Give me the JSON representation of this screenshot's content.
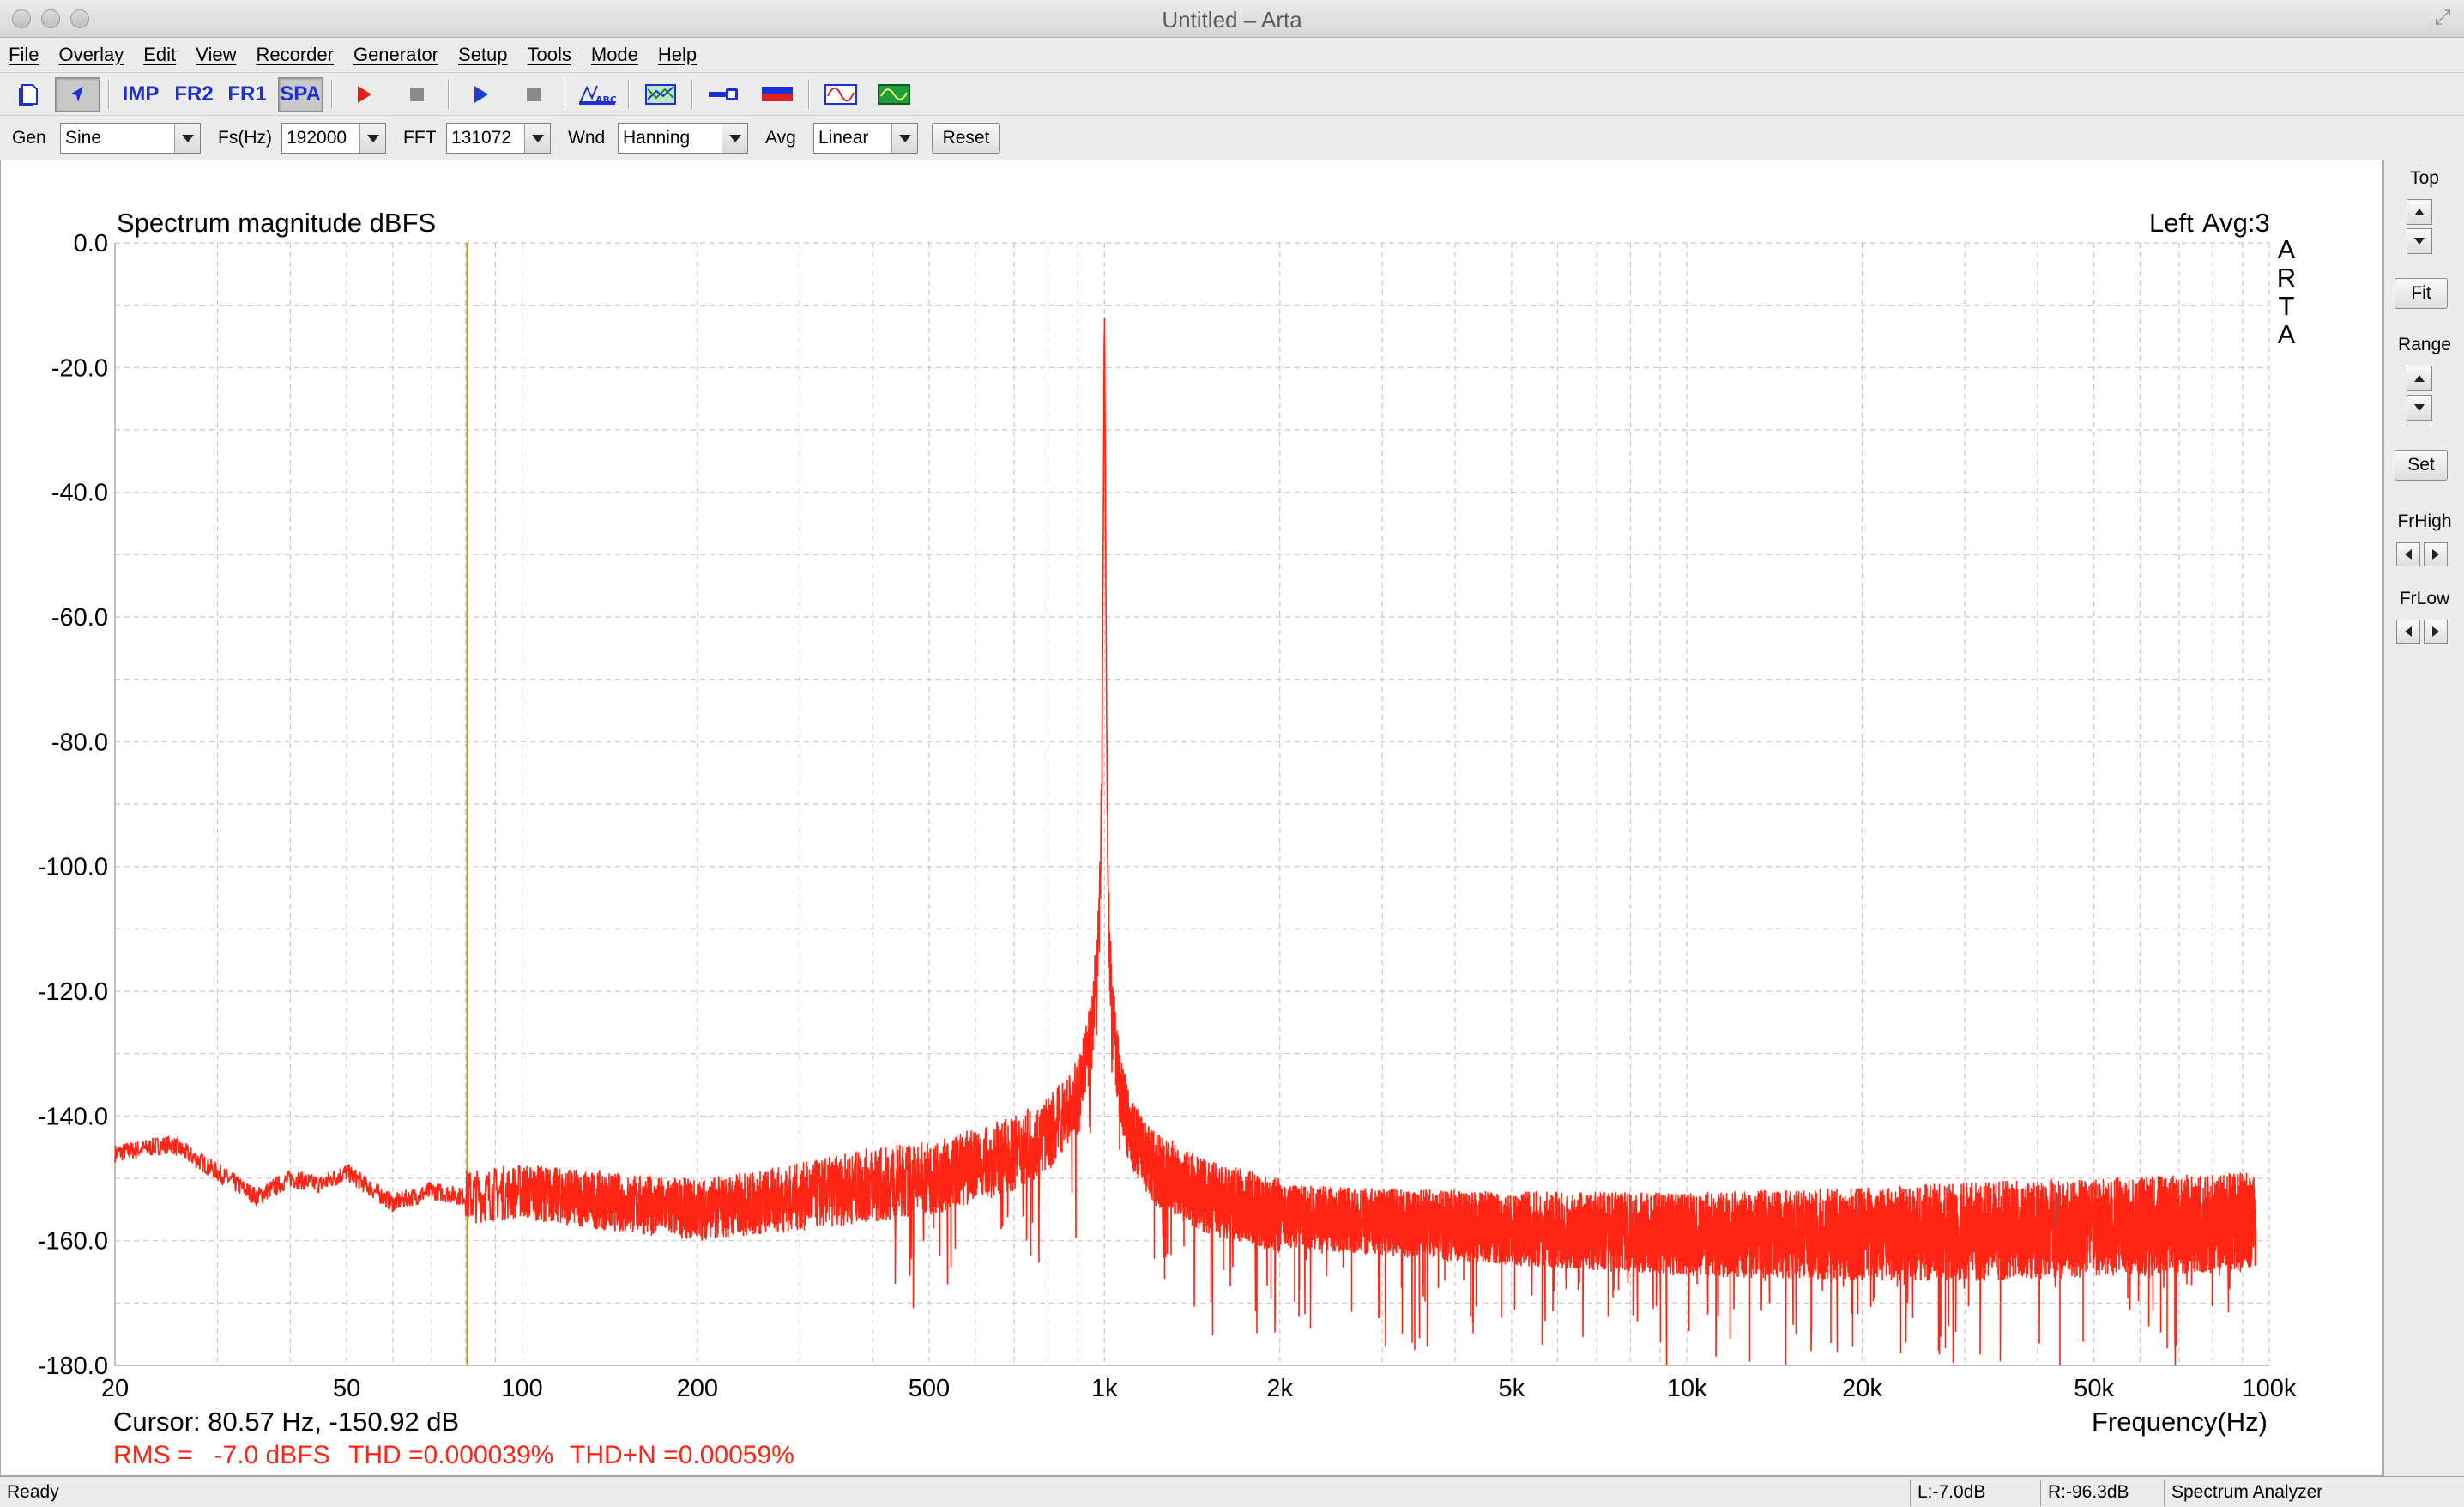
{
  "window": {
    "title": "Untitled – Arta"
  },
  "menu": [
    "File",
    "Overlay",
    "Edit",
    "View",
    "Recorder",
    "Generator",
    "Setup",
    "Tools",
    "Mode",
    "Help"
  ],
  "toolbar": {
    "imp_label": "IMP",
    "fr2_label": "FR2",
    "fr1_label": "FR1",
    "spa_label": "SPA",
    "active_mode": "SPA",
    "record_color": "#e02020",
    "play_color": "#1e3fd6"
  },
  "params": {
    "gen_label": "Gen",
    "gen_value": "Sine",
    "fs_label": "Fs(Hz)",
    "fs_value": "192000",
    "fft_label": "FFT",
    "fft_value": "131072",
    "wnd_label": "Wnd",
    "wnd_value": "Hanning",
    "avg_label": "Avg",
    "avg_value": "Linear",
    "reset_label": "Reset"
  },
  "plot": {
    "title": "Spectrum magnitude dBFS",
    "channel": "Left",
    "avg": "Avg:3",
    "watermark": "ARTA",
    "xlabel": "Frequency(Hz)",
    "cursor_text": "Cursor: 80.57 Hz, -150.92 dB",
    "rms_text": "RMS =   -7.0 dBFS",
    "thd_text": "THD =0.000039%",
    "thdn_text": "THD+N =0.00059%",
    "trace_color": "#ff2414",
    "cursor_color": "#b8a000",
    "measure_color": "#ff2414"
  },
  "chart_data": {
    "type": "line",
    "title": "Spectrum magnitude dBFS",
    "xlabel": "Frequency(Hz)",
    "ylabel": "",
    "xscale": "log",
    "xlim": [
      20,
      100000
    ],
    "ylim": [
      -180,
      0
    ],
    "grid": true,
    "x_ticks": [
      {
        "v": 20,
        "label": "20"
      },
      {
        "v": 50,
        "label": "50"
      },
      {
        "v": 100,
        "label": "100"
      },
      {
        "v": 200,
        "label": "200"
      },
      {
        "v": 500,
        "label": "500"
      },
      {
        "v": 1000,
        "label": "1k"
      },
      {
        "v": 2000,
        "label": "2k"
      },
      {
        "v": 5000,
        "label": "5k"
      },
      {
        "v": 10000,
        "label": "10k"
      },
      {
        "v": 20000,
        "label": "20k"
      },
      {
        "v": 50000,
        "label": "50k"
      },
      {
        "v": 100000,
        "label": "100k"
      }
    ],
    "y_ticks": [
      {
        "v": 0,
        "label": "0.0"
      },
      {
        "v": -20,
        "label": "-20.0"
      },
      {
        "v": -40,
        "label": "-40.0"
      },
      {
        "v": -60,
        "label": "-60.0"
      },
      {
        "v": -80,
        "label": "-80.0"
      },
      {
        "v": -100,
        "label": "-100.0"
      },
      {
        "v": -120,
        "label": "-120.0"
      },
      {
        "v": -140,
        "label": "-140.0"
      },
      {
        "v": -160,
        "label": "-160.0"
      },
      {
        "v": -180,
        "label": "-180.0"
      }
    ],
    "cursor_hz": 80.57,
    "series": [
      {
        "x": [
          20,
          25,
          30,
          35,
          40,
          45,
          50,
          60,
          70,
          80,
          100,
          120,
          150,
          200,
          250,
          300,
          400,
          500,
          600,
          700,
          800,
          900,
          950,
          980,
          990,
          995,
          1000,
          1005,
          1010,
          1020,
          1050,
          1100,
          1200,
          1500,
          2000,
          3000,
          5000,
          10000,
          20000,
          50000,
          95000
        ],
        "y": [
          -146,
          -144.5,
          -149,
          -153,
          -150,
          -151,
          -149,
          -154,
          -152,
          -153,
          -152,
          -153,
          -154,
          -155,
          -154,
          -153,
          -151,
          -150,
          -148,
          -146,
          -143,
          -137,
          -127,
          -110,
          -85,
          -50,
          -7,
          -50,
          -85,
          -115,
          -132,
          -142,
          -148,
          -153,
          -156,
          -157,
          -158,
          -159,
          -159,
          -158,
          -157
        ]
      }
    ]
  },
  "rightpanel": {
    "top_label": "Top",
    "fit_label": "Fit",
    "range_label": "Range",
    "set_label": "Set",
    "frhigh_label": "FrHigh",
    "frlow_label": "FrLow"
  },
  "status": {
    "ready": "Ready",
    "left_level": "L:-7.0dB",
    "right_level": "R:-96.3dB",
    "mode": "Spectrum Analyzer"
  }
}
